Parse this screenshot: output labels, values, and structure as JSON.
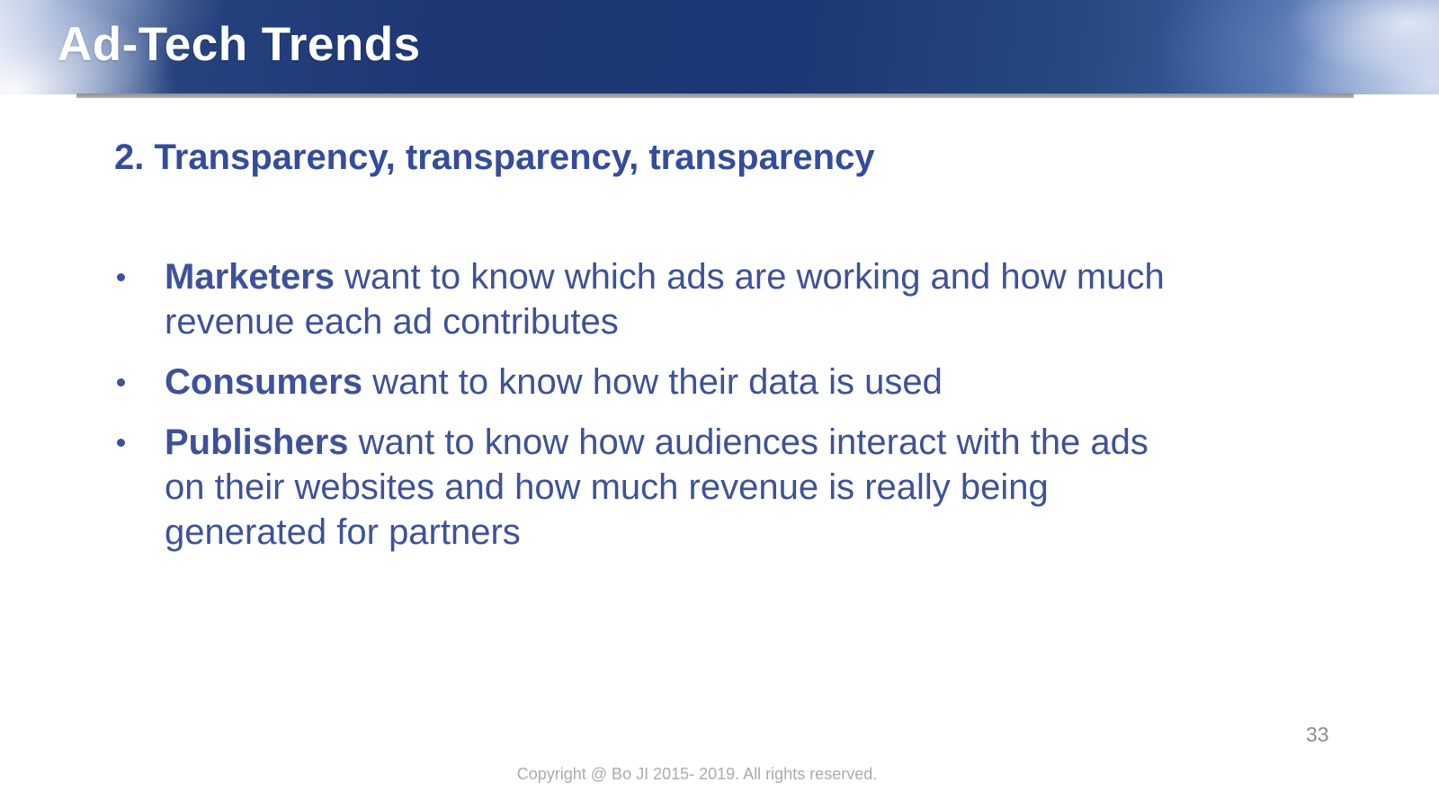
{
  "slide": {
    "header": {
      "title": "Ad-Tech Trends"
    },
    "subtitle": "2. Transparency, transparency, transparency",
    "bullets": [
      {
        "lead": "Marketers",
        "rest": " want to know which ads are working and how much\nrevenue each ad contributes"
      },
      {
        "lead": "Consumers",
        "rest": " want to know how their data is used"
      },
      {
        "lead": "Publishers",
        "rest": " want to know how audiences interact with the ads\non their websites and how much revenue is really being\ngenerated for partners"
      }
    ],
    "page_number": "33",
    "footer": "Copyright @ Bo JI 2015- 2019. All rights reserved.",
    "colors": {
      "header_navy": "#1d3875",
      "header_edge_blue": "#6f8fc9",
      "title_white": "#ffffff",
      "subtitle_blue": "#344c9b",
      "body_blue": "#3e5299",
      "divider_gray": "#9b9b9b",
      "footer_gray": "#ababab",
      "page_number_gray": "#8c8c8c"
    }
  }
}
